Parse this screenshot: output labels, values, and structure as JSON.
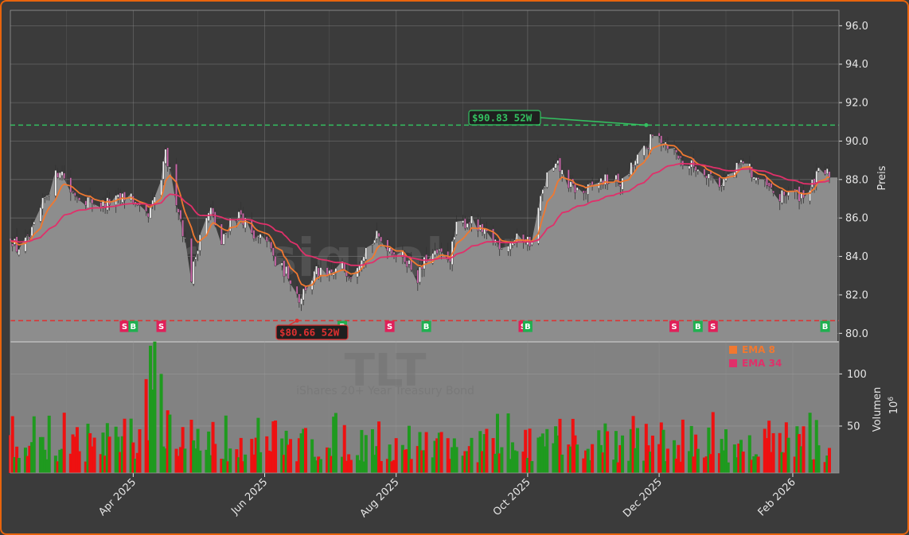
{
  "colors": {
    "background": "#3b3b3b",
    "plot_bg": "#828282",
    "frame": "#e8640c",
    "area_fill": "#8d8d8d",
    "up_candle": "#f2f2f2",
    "down_candle": "#cc66aa",
    "ema_fast": "#f07830",
    "ema_slow": "#e0306a",
    "volume_up": "#1f9a1f",
    "volume_down": "#ee1111",
    "high_line": "#33c060",
    "low_line": "#e03030",
    "buy": "#20b050",
    "sell": "#e0205a",
    "grid": "#9a9a9a"
  },
  "watermark": {
    "site": "forexsignale.trade",
    "ticker": "TLT",
    "name": "iShares 20+ Year Treasury Bond"
  },
  "chart_data": [
    {
      "type": "candlestick",
      "ylabel": "Preis",
      "ylim": [
        79.6,
        96.8
      ],
      "yticks": [
        "80.0",
        "82.0",
        "84.0",
        "86.0",
        "88.0",
        "90.0",
        "92.0",
        "94.0",
        "96.0"
      ],
      "grid": true,
      "x_range": [
        "2025-02-03",
        "2026-02-18"
      ],
      "xticks": [
        {
          "date": "2025-04-01",
          "label": "Apr 2025"
        },
        {
          "date": "2025-06-01",
          "label": "Jun 2025"
        },
        {
          "date": "2025-08-01",
          "label": "Aug 2025"
        },
        {
          "date": "2025-10-01",
          "label": "Oct 2025"
        },
        {
          "date": "2025-12-01",
          "label": "Dec 2025"
        },
        {
          "date": "2026-02-01",
          "label": "Feb 2026"
        }
      ],
      "close_anchors": [
        [
          "2025-02-03",
          85.1
        ],
        [
          "2025-02-06",
          84.4
        ],
        [
          "2025-02-12",
          84.9
        ],
        [
          "2025-02-20",
          87.3
        ],
        [
          "2025-02-26",
          88.6
        ],
        [
          "2025-03-03",
          87.4
        ],
        [
          "2025-03-10",
          87.0
        ],
        [
          "2025-03-17",
          86.7
        ],
        [
          "2025-03-24",
          86.9
        ],
        [
          "2025-03-31",
          87.2
        ],
        [
          "2025-04-03",
          86.4
        ],
        [
          "2025-04-08",
          86.0
        ],
        [
          "2025-04-14",
          88.0
        ],
        [
          "2025-04-16",
          89.3
        ],
        [
          "2025-04-22",
          86.5
        ],
        [
          "2025-04-25",
          84.8
        ],
        [
          "2025-04-28",
          82.9
        ],
        [
          "2025-05-02",
          85.2
        ],
        [
          "2025-05-07",
          86.4
        ],
        [
          "2025-05-12",
          84.6
        ],
        [
          "2025-05-16",
          85.9
        ],
        [
          "2025-05-21",
          86.2
        ],
        [
          "2025-05-27",
          84.8
        ],
        [
          "2025-06-02",
          85.0
        ],
        [
          "2025-06-06",
          83.6
        ],
        [
          "2025-06-12",
          83.1
        ],
        [
          "2025-06-17",
          81.8
        ],
        [
          "2025-06-20",
          82.4
        ],
        [
          "2025-06-25",
          83.2
        ],
        [
          "2025-06-30",
          82.9
        ],
        [
          "2025-07-07",
          83.5
        ],
        [
          "2025-07-11",
          83.1
        ],
        [
          "2025-07-17",
          84.3
        ],
        [
          "2025-07-23",
          85.0
        ],
        [
          "2025-07-28",
          84.6
        ],
        [
          "2025-08-01",
          84.2
        ],
        [
          "2025-08-06",
          83.8
        ],
        [
          "2025-08-11",
          82.9
        ],
        [
          "2025-08-15",
          83.9
        ],
        [
          "2025-08-20",
          84.1
        ],
        [
          "2025-08-26",
          84.0
        ],
        [
          "2025-08-29",
          85.5
        ],
        [
          "2025-09-04",
          85.9
        ],
        [
          "2025-09-10",
          85.2
        ],
        [
          "2025-09-15",
          84.9
        ],
        [
          "2025-09-19",
          84.6
        ],
        [
          "2025-09-24",
          84.8
        ],
        [
          "2025-09-29",
          85.0
        ],
        [
          "2025-10-03",
          84.7
        ],
        [
          "2025-10-06",
          86.5
        ],
        [
          "2025-10-10",
          88.2
        ],
        [
          "2025-10-15",
          88.7
        ],
        [
          "2025-10-21",
          87.6
        ],
        [
          "2025-10-27",
          87.3
        ],
        [
          "2025-11-03",
          87.9
        ],
        [
          "2025-11-10",
          88.0
        ],
        [
          "2025-11-14",
          87.8
        ],
        [
          "2025-11-18",
          88.6
        ],
        [
          "2025-11-24",
          89.5
        ],
        [
          "2025-11-28",
          90.2
        ],
        [
          "2025-12-03",
          90.1
        ],
        [
          "2025-12-08",
          89.5
        ],
        [
          "2025-12-12",
          88.9
        ],
        [
          "2025-12-17",
          88.7
        ],
        [
          "2025-12-23",
          88.4
        ],
        [
          "2025-12-29",
          87.8
        ],
        [
          "2026-01-05",
          88.4
        ],
        [
          "2026-01-09",
          89.0
        ],
        [
          "2026-01-14",
          88.2
        ],
        [
          "2026-01-20",
          87.6
        ],
        [
          "2026-01-26",
          87.0
        ],
        [
          "2026-01-30",
          87.4
        ],
        [
          "2026-02-04",
          87.2
        ],
        [
          "2026-02-09",
          87.5
        ],
        [
          "2026-02-13",
          88.3
        ],
        [
          "2026-02-18",
          88.3
        ]
      ],
      "series": [
        {
          "name": "EMA 8",
          "color": "#f07830"
        },
        {
          "name": "EMA 34",
          "color": "#e0306a"
        }
      ],
      "horizontal_lines": [
        {
          "value": 90.83,
          "style": "dashed",
          "color": "#33c060"
        },
        {
          "value": 80.66,
          "style": "dashed",
          "color": "#e03030"
        }
      ],
      "annotations": [
        {
          "label": "$90.83 52W",
          "date": "2025-11-25",
          "value": 90.83,
          "color": "#33c060"
        },
        {
          "label": "$80.66 52W",
          "date": "2025-06-16",
          "value": 80.66,
          "color": "#e03030"
        }
      ],
      "signals": [
        {
          "date": "2025-03-28",
          "type": "S"
        },
        {
          "date": "2025-04-01",
          "type": "B"
        },
        {
          "date": "2025-04-14",
          "type": "S"
        },
        {
          "date": "2025-07-07",
          "type": "B"
        },
        {
          "date": "2025-07-29",
          "type": "S"
        },
        {
          "date": "2025-08-15",
          "type": "B"
        },
        {
          "date": "2025-09-29",
          "type": "S"
        },
        {
          "date": "2025-10-01",
          "type": "B"
        },
        {
          "date": "2025-12-08",
          "type": "S"
        },
        {
          "date": "2025-12-19",
          "type": "B"
        },
        {
          "date": "2025-12-26",
          "type": "S"
        },
        {
          "date": "2026-02-16",
          "type": "B"
        }
      ]
    },
    {
      "type": "bar",
      "ylabel": "Volumen",
      "units": "10^6",
      "ylim": [
        5,
        130
      ],
      "yticks": [
        "50",
        "100"
      ],
      "legend": [
        {
          "name": "EMA 8",
          "color": "#f07830"
        },
        {
          "name": "EMA 34",
          "color": "#e0306a"
        }
      ],
      "legend_position": "top-right",
      "typical_range": [
        15,
        70
      ],
      "spikes": [
        {
          "date": "2025-04-07",
          "value": 95
        },
        {
          "date": "2025-04-09",
          "value": 127
        },
        {
          "date": "2025-04-10",
          "value": 85
        },
        {
          "date": "2025-04-11",
          "value": 131
        },
        {
          "date": "2025-04-14",
          "value": 100
        }
      ]
    }
  ]
}
